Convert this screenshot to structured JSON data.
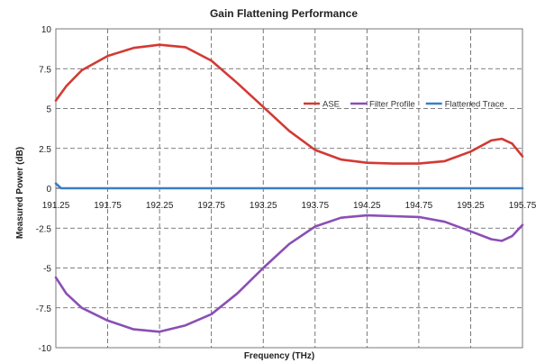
{
  "chart_data": {
    "type": "line",
    "title": "Gain Flattening Performance",
    "xlabel": "Frequency (THz)",
    "ylabel": "Measured Power (dB)",
    "xlim": [
      191.25,
      195.75
    ],
    "ylim": [
      -10,
      10
    ],
    "x_ticks": [
      "191.25",
      "191.75",
      "192.25",
      "192.75",
      "193.25",
      "193.75",
      "194.25",
      "194.75",
      "195.25",
      "195.75"
    ],
    "y_ticks": [
      "10",
      "7.5",
      "5",
      "2.5",
      "0",
      "-2.5",
      "-5",
      "-7.5",
      "-10"
    ],
    "grid": true,
    "grid_style": "dashed",
    "legend_position": "right-upper",
    "series": [
      {
        "name": "ASE",
        "color": "#d23a34",
        "points": [
          [
            191.25,
            5.5
          ],
          [
            191.35,
            6.4
          ],
          [
            191.5,
            7.4
          ],
          [
            191.75,
            8.3
          ],
          [
            192.0,
            8.8
          ],
          [
            192.25,
            9.0
          ],
          [
            192.5,
            8.85
          ],
          [
            192.75,
            8.0
          ],
          [
            193.0,
            6.6
          ],
          [
            193.25,
            5.1
          ],
          [
            193.5,
            3.6
          ],
          [
            193.75,
            2.4
          ],
          [
            194.0,
            1.8
          ],
          [
            194.25,
            1.6
          ],
          [
            194.5,
            1.55
          ],
          [
            194.75,
            1.55
          ],
          [
            195.0,
            1.7
          ],
          [
            195.25,
            2.3
          ],
          [
            195.45,
            3.0
          ],
          [
            195.55,
            3.1
          ],
          [
            195.65,
            2.8
          ],
          [
            195.75,
            2.0
          ]
        ]
      },
      {
        "name": "Filter Profile",
        "color": "#8a4fb4",
        "points": [
          [
            191.25,
            -5.6
          ],
          [
            191.35,
            -6.6
          ],
          [
            191.5,
            -7.5
          ],
          [
            191.75,
            -8.3
          ],
          [
            192.0,
            -8.85
          ],
          [
            192.25,
            -9.0
          ],
          [
            192.5,
            -8.6
          ],
          [
            192.75,
            -7.9
          ],
          [
            193.0,
            -6.6
          ],
          [
            193.25,
            -5.0
          ],
          [
            193.5,
            -3.5
          ],
          [
            193.75,
            -2.4
          ],
          [
            194.0,
            -1.85
          ],
          [
            194.25,
            -1.7
          ],
          [
            194.5,
            -1.75
          ],
          [
            194.75,
            -1.8
          ],
          [
            195.0,
            -2.1
          ],
          [
            195.25,
            -2.7
          ],
          [
            195.45,
            -3.2
          ],
          [
            195.55,
            -3.3
          ],
          [
            195.65,
            -3.0
          ],
          [
            195.75,
            -2.3
          ]
        ]
      },
      {
        "name": "Flattened Trace",
        "color": "#3a7fc4",
        "points": [
          [
            191.25,
            0.3
          ],
          [
            191.3,
            0.0
          ],
          [
            191.5,
            0.0
          ],
          [
            191.75,
            0.0
          ],
          [
            192.0,
            0.0
          ],
          [
            192.25,
            0.0
          ],
          [
            192.5,
            0.0
          ],
          [
            192.75,
            0.0
          ],
          [
            193.0,
            0.0
          ],
          [
            193.25,
            0.0
          ],
          [
            193.5,
            0.0
          ],
          [
            193.75,
            0.0
          ],
          [
            194.0,
            0.0
          ],
          [
            194.25,
            0.0
          ],
          [
            194.5,
            0.0
          ],
          [
            194.75,
            0.0
          ],
          [
            195.0,
            0.0
          ],
          [
            195.25,
            0.0
          ],
          [
            195.5,
            0.0
          ],
          [
            195.75,
            0.0
          ]
        ]
      }
    ]
  }
}
